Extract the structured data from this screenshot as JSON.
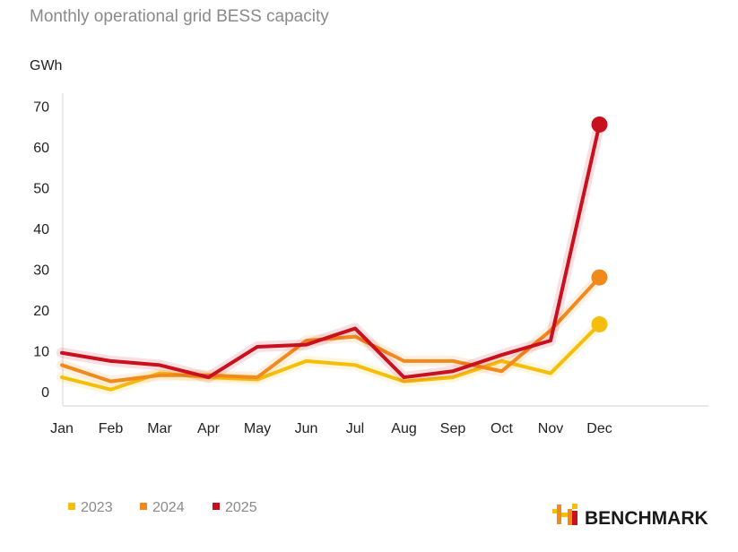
{
  "chart_data": {
    "type": "line",
    "title": "Monthly operational grid BESS capacity",
    "ylabel": "GWh",
    "xlabel": "",
    "categories": [
      "Jan",
      "Feb",
      "Mar",
      "Apr",
      "May",
      "Jun",
      "Jul",
      "Aug",
      "Sep",
      "Oct",
      "Nov",
      "Dec"
    ],
    "ylim": [
      -4,
      72
    ],
    "yticks": [
      0,
      10,
      20,
      30,
      40,
      50,
      60,
      70
    ],
    "grid": false,
    "legend_position": "bottom-left",
    "series": [
      {
        "name": "2023",
        "color": "#F5BE0B",
        "values": [
          3.5,
          0.5,
          4.5,
          3.5,
          3.0,
          7.5,
          6.5,
          2.5,
          3.5,
          7.5,
          4.5,
          16.5
        ]
      },
      {
        "name": "2024",
        "color": "#F08A1C",
        "values": [
          6.5,
          2.5,
          4.0,
          4.0,
          3.5,
          12.5,
          13.5,
          7.5,
          7.5,
          5.0,
          15.0,
          28.0
        ]
      },
      {
        "name": "2025",
        "color": "#C8101E",
        "values": [
          9.5,
          7.5,
          6.5,
          3.5,
          11.0,
          11.5,
          15.5,
          3.5,
          5.0,
          9.0,
          12.5,
          65.5
        ]
      }
    ]
  },
  "brand": {
    "name": "BENCHMARK",
    "icon": "benchmark-logo-icon",
    "colors": [
      "#F5BE0B",
      "#F08A1C",
      "#C8101E"
    ]
  }
}
